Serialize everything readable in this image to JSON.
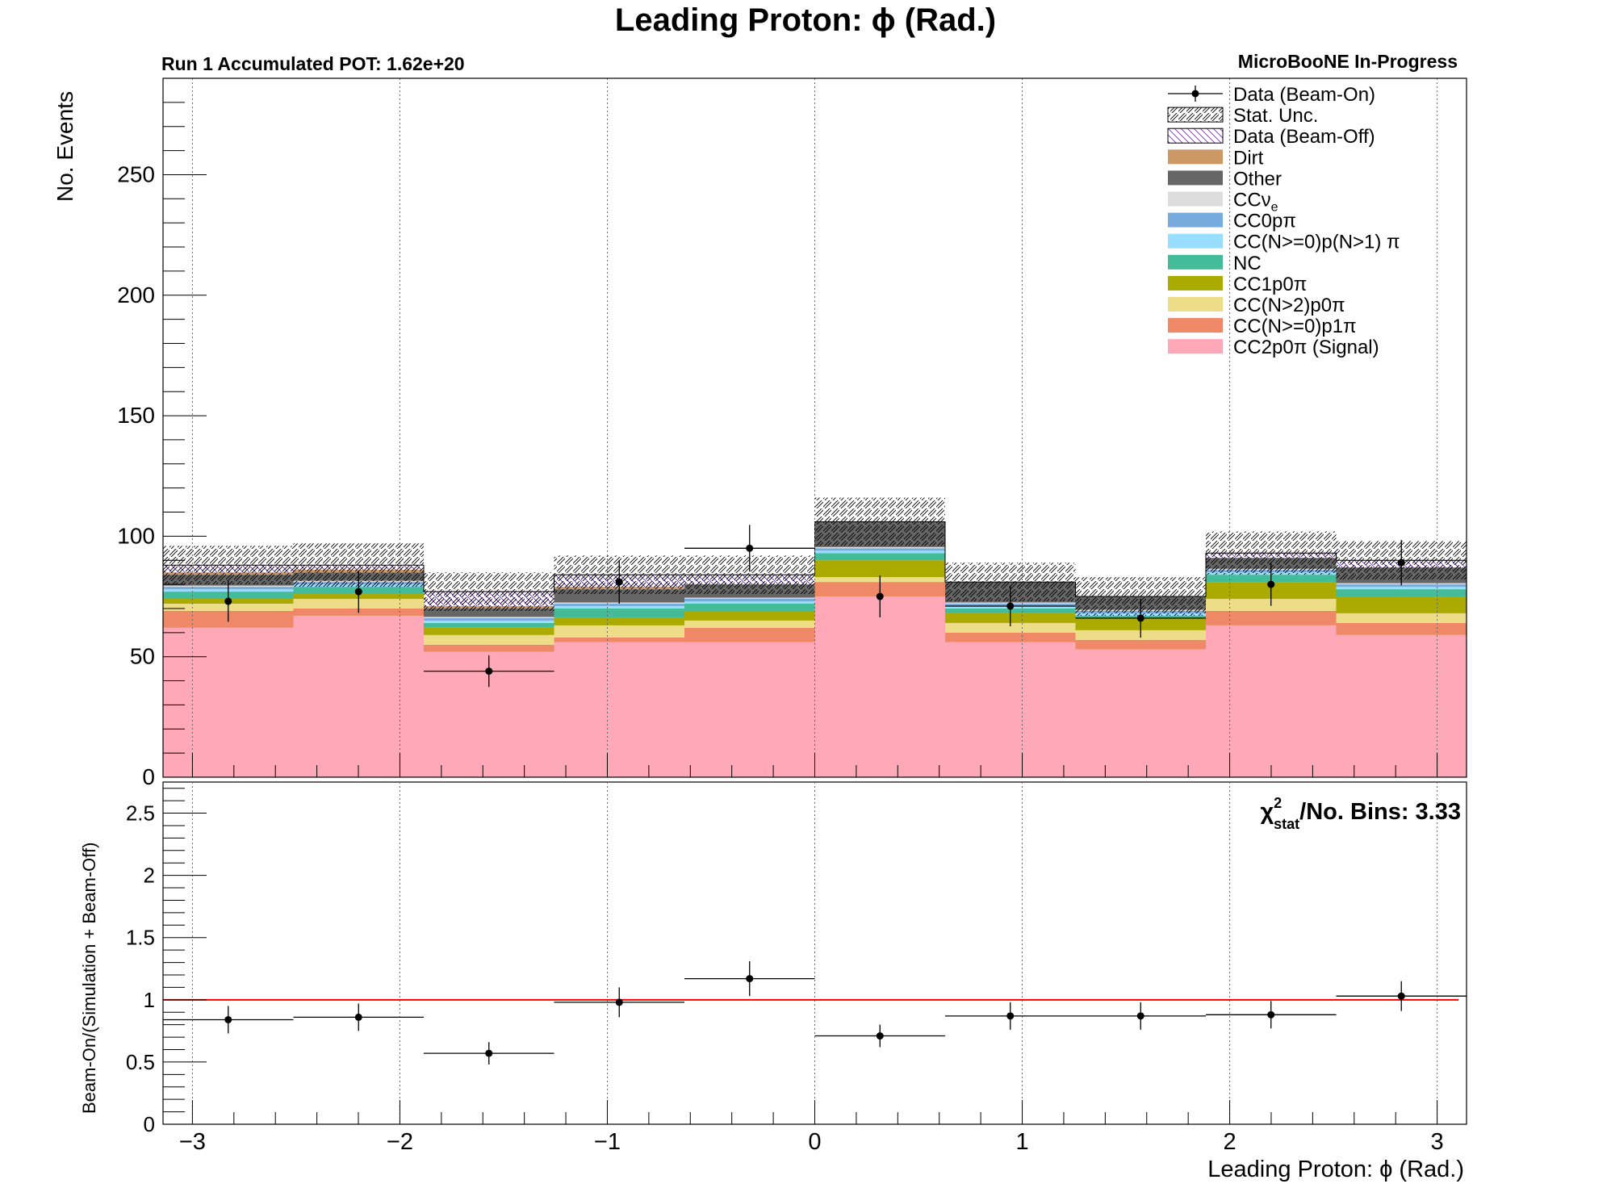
{
  "figure": {
    "title": "Leading Proton:  ϕ (Rad.)",
    "run_label": "Run 1 Accumulated POT: 1.62e+20",
    "experiment_label": "MicroBooNE In-Progress",
    "chi2_label": "/No. Bins: 3.33",
    "chi2_symbol": "χ",
    "chi2_sup": "2",
    "chi2_sub": "stat"
  },
  "chart_data": [
    {
      "type": "bar",
      "subtype": "stacked-histogram",
      "title": "Leading Proton:  ϕ (Rad.)",
      "ylabel": "No. Events",
      "xlim": [
        -3.1416,
        3.1416
      ],
      "ylim": [
        0,
        290
      ],
      "yticks": [
        0,
        50,
        100,
        150,
        200,
        250
      ],
      "grid_x": true,
      "legend_placement": "top-right",
      "bin_edges": [
        -3.1416,
        -2.5133,
        -1.885,
        -1.2566,
        -0.6283,
        0.0,
        0.6283,
        1.2566,
        1.885,
        2.5133,
        3.1416
      ],
      "series": [
        {
          "name": "CC2p0π (Signal)",
          "color": "#ffa8b7",
          "values": [
            62,
            67,
            52,
            56,
            56,
            75,
            56,
            53,
            63,
            59
          ]
        },
        {
          "name": "CC(N>=0)p1π",
          "color": "#ee8866",
          "values": [
            7,
            3,
            3,
            2,
            6,
            6,
            4,
            4,
            6,
            5
          ]
        },
        {
          "name": "CC(N>2)p0π",
          "color": "#eedd88",
          "values": [
            3,
            4,
            4,
            5,
            3,
            2,
            4,
            4,
            5,
            4
          ]
        },
        {
          "name": "CC1p0π",
          "color": "#aaaa00",
          "values": [
            2,
            2,
            3,
            3,
            4,
            7,
            4,
            5,
            7,
            7
          ]
        },
        {
          "name": "NC",
          "color": "#44bb99",
          "values": [
            3,
            3,
            2,
            4,
            3,
            3,
            2,
            1,
            3,
            3
          ]
        },
        {
          "name": "CC(N>=0)p(N>1) π",
          "color": "#99ddff",
          "values": [
            1,
            1,
            1,
            1,
            1,
            1,
            1,
            1,
            1,
            1
          ]
        },
        {
          "name": "CC0pπ",
          "color": "#77aadd",
          "values": [
            1,
            1,
            1,
            1,
            1,
            1,
            1,
            1,
            1,
            1
          ]
        },
        {
          "name": "CCν",
          "name_sub": "e",
          "color": "#dddddd",
          "values": [
            0.5,
            0.5,
            0.5,
            0.5,
            0.5,
            0.5,
            0.5,
            0.5,
            0.5,
            0.5
          ]
        },
        {
          "name": "Other",
          "color": "#666666",
          "values": [
            4.5,
            3.5,
            3.5,
            5.5,
            5.5,
            10.5,
            8.5,
            5.5,
            4.5,
            6.5
          ]
        },
        {
          "name": "Dirt",
          "color": "#cc9966",
          "values": [
            1,
            1,
            1,
            1,
            0,
            0,
            0,
            0,
            0,
            0
          ]
        }
      ],
      "beam_off": {
        "name": "Data (Beam-Off)",
        "values": [
          3,
          2,
          6,
          5,
          4,
          0,
          0,
          0,
          2,
          3
        ]
      },
      "stat_unc": {
        "name": "Stat. Unc.",
        "values": [
          8,
          9,
          8,
          8,
          8,
          10,
          8,
          8,
          9,
          8
        ]
      },
      "data": {
        "name": "Data (Beam-On)",
        "x": [
          -2.8274,
          -2.1991,
          -1.5708,
          -0.9425,
          -0.3142,
          0.3142,
          0.9425,
          1.5708,
          2.1991,
          2.8274
        ],
        "y": [
          73,
          77,
          44,
          81,
          95,
          75,
          71,
          66,
          80,
          89
        ],
        "yerr": [
          8.5,
          8.8,
          6.6,
          9.0,
          9.7,
          8.7,
          8.4,
          8.1,
          8.9,
          9.4
        ],
        "xerr_bins": [
          7,
          8
        ],
        "xerr": 0.3142
      },
      "legend_entries": [
        "Data (Beam-On)",
        "Stat. Unc.",
        "Data (Beam-Off)",
        "Dirt",
        "Other",
        "CCν",
        "CC0pπ",
        "CC(N>=0)p(N>1) π",
        "NC",
        "CC1p0π",
        "CC(N>2)p0π",
        "CC(N>=0)p1π",
        "CC2p0π (Signal)"
      ]
    },
    {
      "type": "scatter",
      "subtype": "ratio",
      "xlabel": "Leading Proton:  ϕ (Rad.)",
      "ylabel": "Beam-On/(Simulation + Beam-Off)",
      "xlim": [
        -3.1416,
        3.1416
      ],
      "ylim": [
        0,
        2.75
      ],
      "yticks": [
        0,
        0.5,
        1,
        1.5,
        2,
        2.5
      ],
      "xticks": [
        -3,
        -2,
        -1,
        0,
        1,
        2,
        3
      ],
      "xtick_labels": [
        "−3",
        "−2",
        "−1",
        "0",
        "1",
        "2",
        "3"
      ],
      "grid_x": true,
      "reference_line": {
        "y": 1,
        "color": "#ff0000"
      },
      "x": [
        -2.8274,
        -2.1991,
        -1.5708,
        -0.9425,
        -0.3142,
        0.3142,
        0.9425,
        1.5708,
        2.1991,
        2.8274
      ],
      "y": [
        0.84,
        0.86,
        0.57,
        0.98,
        1.17,
        0.71,
        0.87,
        0.87,
        0.88,
        1.03
      ],
      "yerr": [
        0.11,
        0.11,
        0.09,
        0.12,
        0.14,
        0.09,
        0.11,
        0.11,
        0.11,
        0.12
      ]
    }
  ]
}
